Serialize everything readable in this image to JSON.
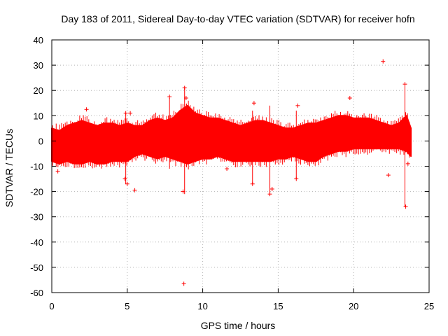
{
  "chart_data": {
    "type": "scatter",
    "title": "Day 183 of 2011, Sidereal Day-to-day VTEC variation (SDTVAR) for receiver hofn",
    "xlabel": "GPS time / hours",
    "ylabel": "SDTVAR / TECUs",
    "xlim": [
      0,
      25
    ],
    "ylim": [
      -60,
      40
    ],
    "xticks": [
      0,
      5,
      10,
      15,
      20,
      25
    ],
    "yticks": [
      -60,
      -50,
      -40,
      -30,
      -20,
      -10,
      0,
      10,
      20,
      30,
      40
    ],
    "xtick_labels": [
      "0",
      "5",
      "10",
      "15",
      "20",
      "25"
    ],
    "ytick_labels": [
      "-60",
      "-50",
      "-40",
      "-30",
      "-20",
      "-10",
      "0",
      "10",
      "20",
      "30",
      "40"
    ],
    "grid": true,
    "marker": "+",
    "color": "#ff0000",
    "band": {
      "description": "dense scatter of per-satellite SDTVAR samples",
      "x": [
        0.0,
        0.5,
        1.0,
        1.5,
        2.0,
        2.5,
        3.0,
        3.5,
        4.0,
        4.5,
        5.0,
        5.5,
        6.0,
        6.5,
        7.0,
        7.5,
        8.0,
        8.5,
        9.0,
        9.5,
        10.0,
        10.5,
        11.0,
        11.5,
        12.0,
        12.5,
        13.0,
        13.5,
        14.0,
        14.5,
        15.0,
        15.5,
        16.0,
        16.5,
        17.0,
        17.5,
        18.0,
        18.5,
        19.0,
        19.5,
        20.0,
        20.5,
        21.0,
        21.5,
        22.0,
        22.5,
        23.0,
        23.5,
        23.8
      ],
      "upper": [
        5,
        4,
        6,
        7,
        8,
        7,
        6,
        7,
        7,
        6,
        7,
        6,
        6,
        8,
        9,
        8,
        9,
        12,
        14,
        11,
        10,
        9,
        9,
        8,
        7,
        6,
        7,
        8,
        8,
        7,
        6,
        5,
        5,
        6,
        7,
        7,
        8,
        9,
        10,
        10,
        9,
        9,
        9,
        8,
        7,
        6,
        7,
        10,
        5
      ],
      "lower": [
        -8,
        -9,
        -8,
        -9,
        -9,
        -8,
        -9,
        -9,
        -8,
        -8,
        -8,
        -6,
        -5,
        -6,
        -7,
        -6,
        -7,
        -8,
        -9,
        -8,
        -7,
        -7,
        -6,
        -7,
        -8,
        -8,
        -8,
        -8,
        -8,
        -8,
        -7,
        -7,
        -6,
        -7,
        -8,
        -8,
        -6,
        -5,
        -4,
        -4,
        -3,
        -3,
        -3,
        -3,
        -3,
        -3,
        -3,
        -4,
        -6
      ]
    },
    "outliers": {
      "x": [
        21.95,
        8.75,
        19.75,
        23.4,
        8.8,
        22.3,
        0.4,
        5.5,
        4.85,
        5.0,
        8.7,
        14.45,
        14.6,
        13.3,
        16.2,
        23.45,
        23.6,
        8.9,
        7.8,
        4.9,
        5.2,
        16.3,
        2.3,
        11.6,
        13.4
      ],
      "y": [
        31.5,
        -56.5,
        17,
        22.5,
        21,
        -13.5,
        -12,
        -19.5,
        -15,
        -17,
        -20,
        -21,
        -19,
        -17,
        -15,
        -26,
        -9,
        17,
        17.5,
        11,
        11,
        14,
        12.5,
        -11,
        15
      ]
    },
    "whiskers": [
      {
        "x": 8.8,
        "ylow": -21,
        "yhigh": 21
      },
      {
        "x": 23.4,
        "ylow": -26,
        "yhigh": 22
      },
      {
        "x": 14.45,
        "ylow": -21,
        "yhigh": 14
      },
      {
        "x": 16.2,
        "ylow": -15,
        "yhigh": 12
      },
      {
        "x": 13.3,
        "ylow": -17,
        "yhigh": 12
      },
      {
        "x": 4.9,
        "ylow": -17,
        "yhigh": 11
      },
      {
        "x": 7.8,
        "ylow": -11,
        "yhigh": 17
      }
    ]
  }
}
